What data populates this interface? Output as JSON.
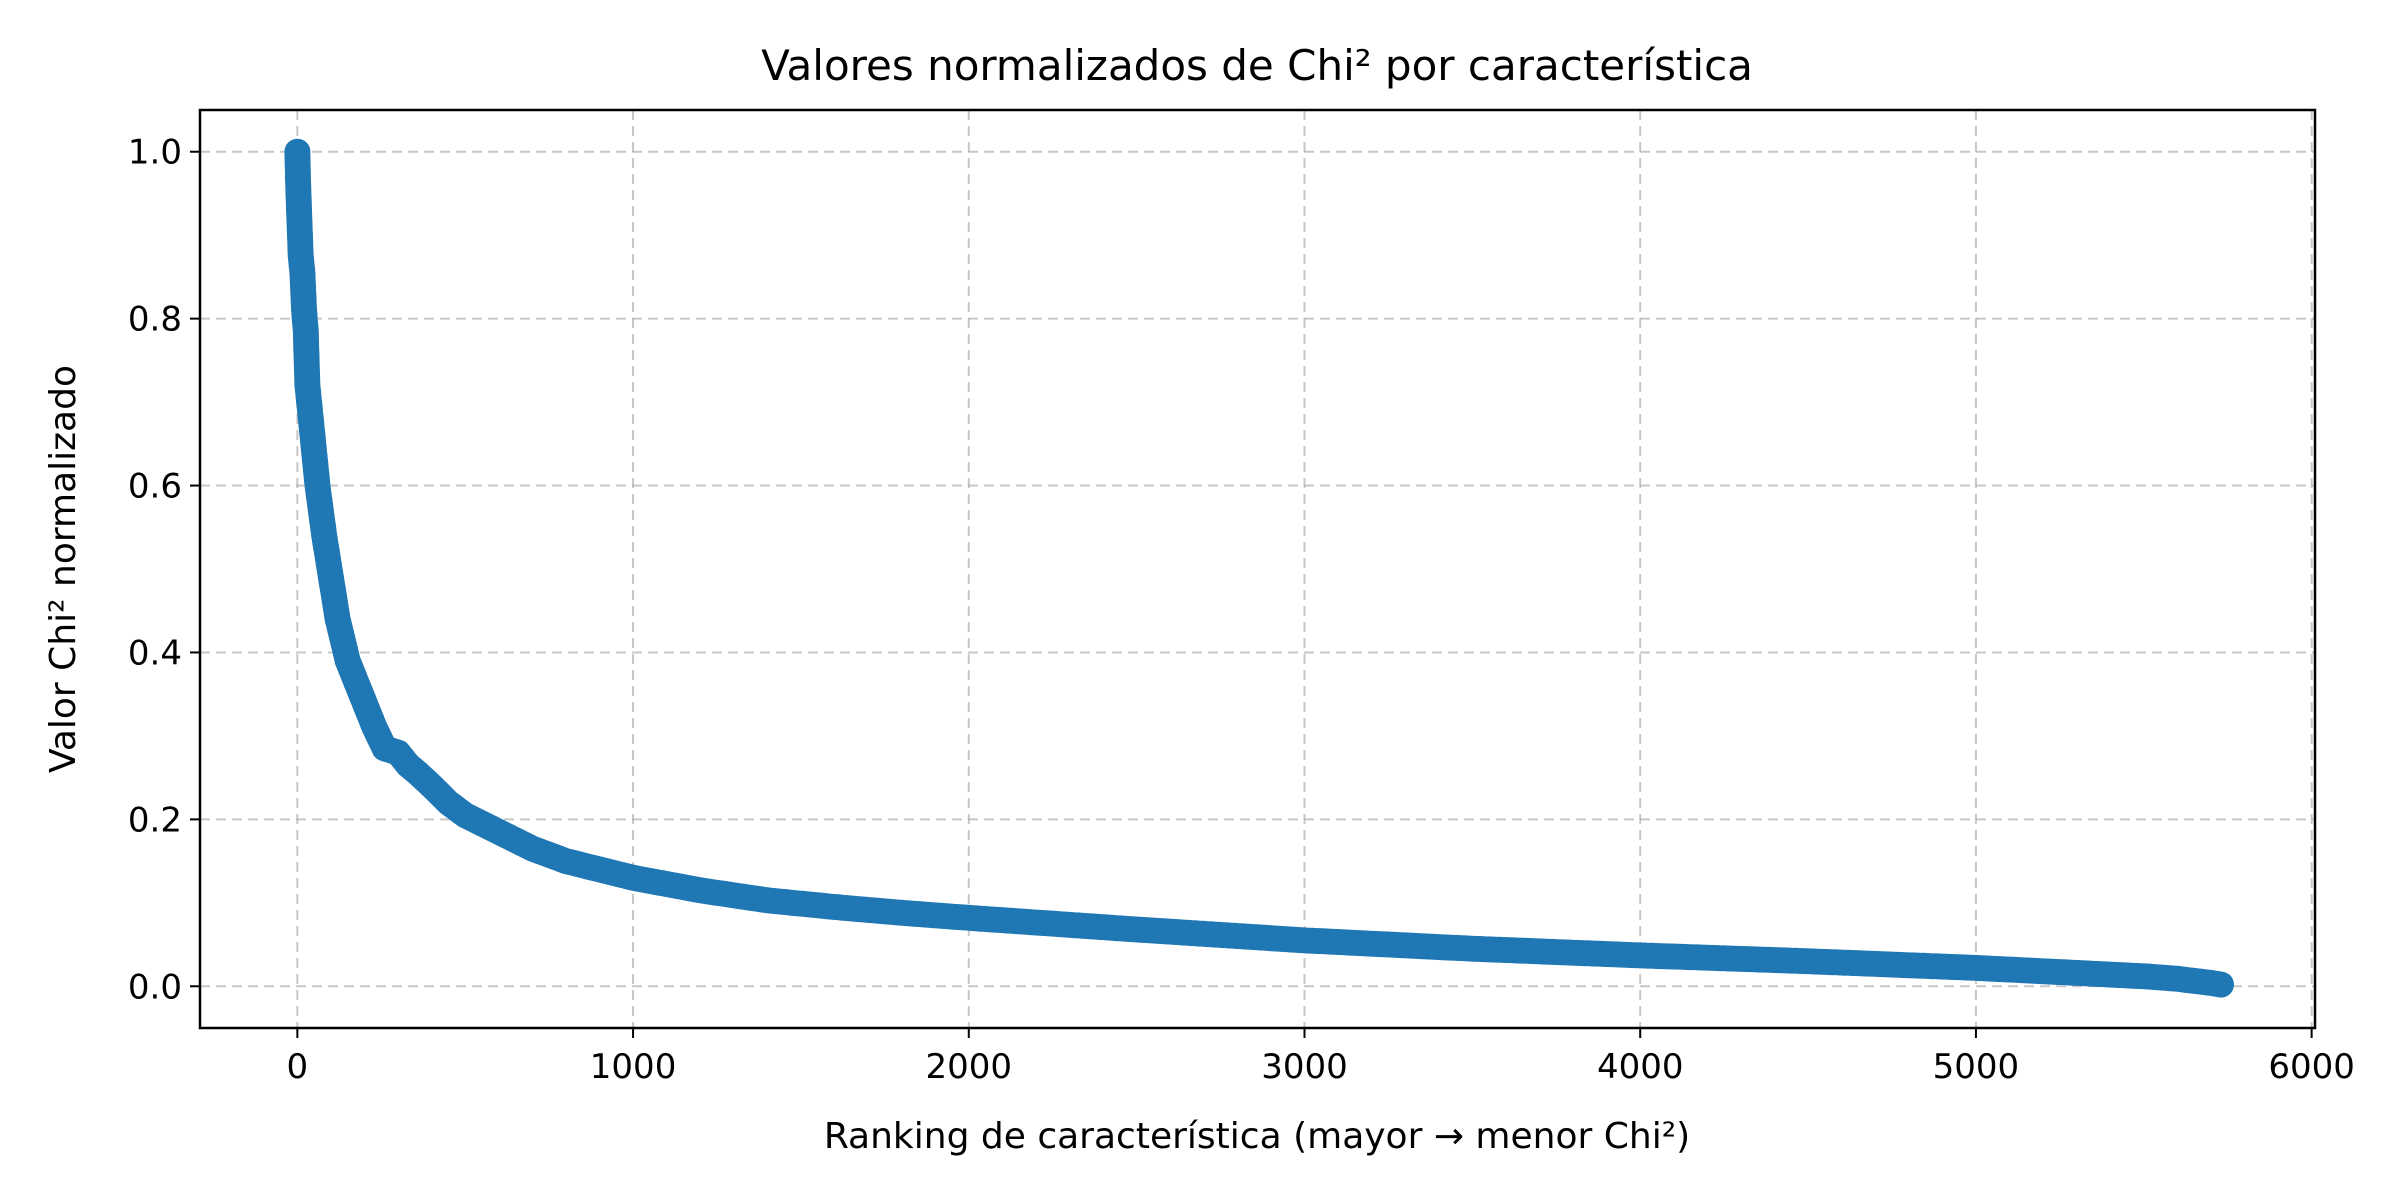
{
  "chart_data": {
    "type": "line",
    "title": "Valores normalizados de Chi² por característica",
    "xlabel": "Ranking de característica (mayor → menor Chi²)",
    "ylabel": "Valor Chi² normalizado",
    "xlim": [
      -290,
      6010
    ],
    "ylim": [
      -0.05,
      1.05
    ],
    "xticks": [
      0,
      1000,
      2000,
      3000,
      4000,
      5000,
      6000
    ],
    "xtick_labels": [
      "0",
      "1000",
      "2000",
      "3000",
      "4000",
      "5000",
      "6000"
    ],
    "yticks": [
      0.0,
      0.2,
      0.4,
      0.6,
      0.8,
      1.0
    ],
    "ytick_labels": [
      "0.0",
      "0.2",
      "0.4",
      "0.6",
      "0.8",
      "1.0"
    ],
    "grid": true,
    "marker": "circle",
    "series": [
      {
        "color": "#1f77b4",
        "x": [
          0,
          2,
          5,
          10,
          15,
          20,
          25,
          30,
          40,
          50,
          60,
          80,
          100,
          120,
          150,
          180,
          200,
          230,
          260,
          300,
          330,
          360,
          400,
          450,
          500,
          550,
          600,
          700,
          800,
          900,
          1000,
          1200,
          1400,
          1600,
          1800,
          2000,
          2500,
          3000,
          3500,
          4000,
          4500,
          5000,
          5300,
          5500,
          5600,
          5700,
          5730
        ],
        "y": [
          1.0,
          0.965,
          0.93,
          0.875,
          0.855,
          0.81,
          0.785,
          0.72,
          0.68,
          0.64,
          0.6,
          0.54,
          0.49,
          0.44,
          0.39,
          0.36,
          0.34,
          0.31,
          0.285,
          0.28,
          0.265,
          0.255,
          0.24,
          0.22,
          0.205,
          0.195,
          0.185,
          0.165,
          0.15,
          0.14,
          0.13,
          0.115,
          0.103,
          0.095,
          0.088,
          0.082,
          0.068,
          0.055,
          0.045,
          0.037,
          0.03,
          0.022,
          0.016,
          0.012,
          0.009,
          0.004,
          0.002
        ]
      }
    ]
  }
}
